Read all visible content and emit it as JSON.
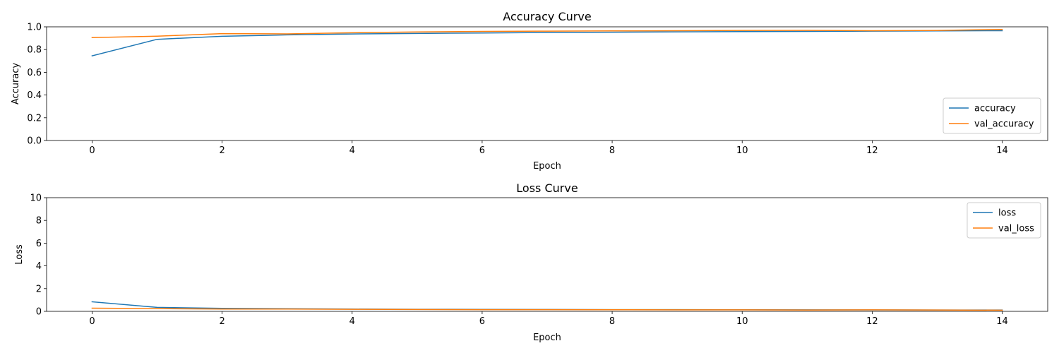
{
  "colors": {
    "series1": "#1f77b4",
    "series2": "#ff7f0e"
  },
  "chart_data": [
    {
      "type": "line",
      "title": "Accuracy Curve",
      "xlabel": "Epoch",
      "ylabel": "Accuracy",
      "xlim": [
        -0.7,
        14.7
      ],
      "ylim": [
        0,
        1.0
      ],
      "xticks": [
        0,
        2,
        4,
        6,
        8,
        10,
        12,
        14
      ],
      "yticks": [
        0.0,
        0.2,
        0.4,
        0.6,
        0.8,
        1.0
      ],
      "ytick_labels": [
        "0.0",
        "0.2",
        "0.4",
        "0.6",
        "0.8",
        "1.0"
      ],
      "grid": false,
      "legend": "lower-right",
      "x": [
        0,
        1,
        2,
        3,
        4,
        5,
        6,
        7,
        8,
        9,
        10,
        11,
        12,
        13,
        14
      ],
      "series": [
        {
          "name": "accuracy",
          "color": "#1f77b4",
          "values": [
            0.745,
            0.89,
            0.917,
            0.929,
            0.937,
            0.942,
            0.946,
            0.95,
            0.953,
            0.956,
            0.958,
            0.96,
            0.962,
            0.964,
            0.966
          ]
        },
        {
          "name": "val_accuracy",
          "color": "#ff7f0e",
          "values": [
            0.905,
            0.918,
            0.94,
            0.938,
            0.948,
            0.955,
            0.96,
            0.962,
            0.964,
            0.966,
            0.968,
            0.969,
            0.966,
            0.968,
            0.977
          ]
        }
      ]
    },
    {
      "type": "line",
      "title": "Loss Curve",
      "xlabel": "Epoch",
      "ylabel": "Loss",
      "xlim": [
        -0.7,
        14.7
      ],
      "ylim": [
        0,
        10
      ],
      "xticks": [
        0,
        2,
        4,
        6,
        8,
        10,
        12,
        14
      ],
      "yticks": [
        0,
        2,
        4,
        6,
        8,
        10
      ],
      "ytick_labels": [
        "0",
        "2",
        "4",
        "6",
        "8",
        "10"
      ],
      "grid": false,
      "legend": "upper-right",
      "x": [
        0,
        1,
        2,
        3,
        4,
        5,
        6,
        7,
        8,
        9,
        10,
        11,
        12,
        13,
        14
      ],
      "series": [
        {
          "name": "loss",
          "color": "#1f77b4",
          "values": [
            0.84,
            0.35,
            0.26,
            0.23,
            0.2,
            0.18,
            0.17,
            0.16,
            0.15,
            0.145,
            0.14,
            0.13,
            0.125,
            0.12,
            0.115
          ]
        },
        {
          "name": "val_loss",
          "color": "#ff7f0e",
          "values": [
            0.28,
            0.24,
            0.2,
            0.2,
            0.18,
            0.16,
            0.15,
            0.15,
            0.14,
            0.13,
            0.13,
            0.12,
            0.13,
            0.12,
            0.1
          ]
        }
      ]
    }
  ]
}
